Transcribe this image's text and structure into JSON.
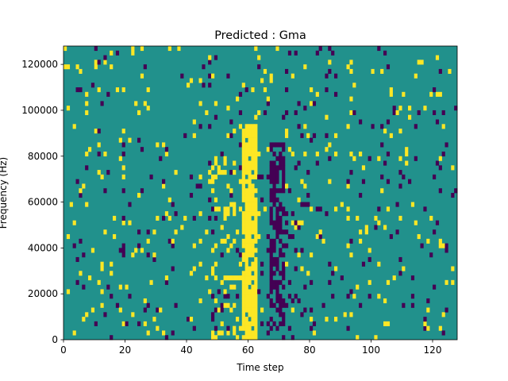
{
  "chart_data": {
    "type": "heatmap",
    "title": "Predicted : Gma",
    "xlabel": "Time step",
    "ylabel": "Frequency (Hz)",
    "xlim": [
      0,
      128
    ],
    "ylim": [
      0,
      128000
    ],
    "x_ticks": [
      0,
      20,
      40,
      60,
      80,
      100,
      120
    ],
    "y_ticks": [
      0,
      20000,
      40000,
      60000,
      80000,
      100000,
      120000
    ],
    "y_tick_labels": [
      "0",
      "20000",
      "40000",
      "60000",
      "80000",
      "100000",
      "120000"
    ],
    "colormap": "viridis",
    "colors": {
      "background": "#21918c",
      "high": "#fde725",
      "low": "#440154"
    },
    "grid": false,
    "dominant_features": {
      "bright_band_time_steps": [
        58,
        62
      ],
      "bright_band_frequency_range": [
        0,
        94000
      ],
      "dark_band_time_steps": [
        67,
        71
      ],
      "dark_band_frequency_range": [
        5000,
        86000
      ]
    }
  }
}
